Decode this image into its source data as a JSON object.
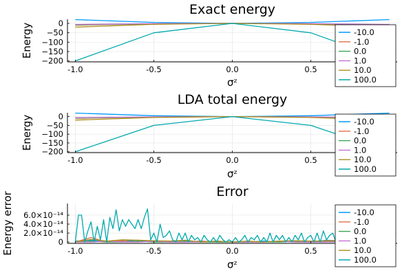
{
  "chart_data": [
    {
      "type": "line",
      "title": "Exact energy",
      "xlabel": "σᶻ",
      "ylabel": "Energy",
      "xlim": [
        -1.05,
        1.05
      ],
      "ylim": [
        -205,
        22
      ],
      "xticks": [
        -1.0,
        -0.5,
        0.0,
        0.5,
        1.0
      ],
      "xtick_labels": [
        "-1.0",
        "-0.5",
        "0.0",
        "0.5",
        "1.0"
      ],
      "yticks": [
        0,
        -50,
        -100,
        -150,
        -200
      ],
      "ytick_labels": [
        "0",
        "−50",
        "−100",
        "−150",
        "−200"
      ],
      "grid": true,
      "legend_position": "right",
      "series": [
        {
          "name": "-10.0",
          "color": "#009AFA",
          "x": [
            -1.0,
            -0.5,
            0.0,
            0.5,
            1.0
          ],
          "y": [
            20.0,
            5.0,
            0.0,
            5.0,
            20.0
          ]
        },
        {
          "name": "-1.0",
          "color": "#E36F47",
          "x": [
            -1.0,
            -0.5,
            0.0,
            0.5,
            1.0
          ],
          "y": [
            -10.0,
            -2.5,
            0.0,
            -2.5,
            -10.0
          ]
        },
        {
          "name": "0.0",
          "color": "#3EA44E",
          "x": [
            -1.0,
            -0.5,
            0.0,
            0.5,
            1.0
          ],
          "y": [
            -8.0,
            -2.0,
            0.0,
            -2.0,
            -8.0
          ]
        },
        {
          "name": "1.0",
          "color": "#C371D2",
          "x": [
            -1.0,
            -0.5,
            0.0,
            0.5,
            1.0
          ],
          "y": [
            -6.0,
            -1.5,
            0.0,
            -1.5,
            -6.0
          ]
        },
        {
          "name": "10.0",
          "color": "#AC8E18",
          "x": [
            -1.0,
            -0.5,
            0.0,
            0.5,
            1.0
          ],
          "y": [
            -20.0,
            -5.0,
            0.0,
            -5.0,
            -20.0
          ]
        },
        {
          "name": "100.0",
          "color": "#00A9AD",
          "x": [
            -1.0,
            -0.5,
            0.0,
            0.5,
            1.0
          ],
          "y": [
            -200.0,
            -50.0,
            0.0,
            -50.0,
            -200.0
          ]
        }
      ]
    },
    {
      "type": "line",
      "title": "LDA total energy",
      "xlabel": "σᶻ",
      "ylabel": "Energy",
      "xlim": [
        -1.05,
        1.05
      ],
      "ylim": [
        -205,
        22
      ],
      "xticks": [
        -1.0,
        -0.5,
        0.0,
        0.5,
        1.0
      ],
      "xtick_labels": [
        "-1.0",
        "-0.5",
        "0.0",
        "0.5",
        "1.0"
      ],
      "yticks": [
        0,
        -50,
        -100,
        -150,
        -200
      ],
      "ytick_labels": [
        "0",
        "−50",
        "−100",
        "−150",
        "−200"
      ],
      "grid": true,
      "legend_position": "right",
      "series": [
        {
          "name": "-10.0",
          "color": "#009AFA",
          "x": [
            -1.0,
            -0.5,
            0.0,
            0.5,
            1.0
          ],
          "y": [
            20.0,
            5.0,
            0.0,
            5.0,
            20.0
          ]
        },
        {
          "name": "-1.0",
          "color": "#E36F47",
          "x": [
            -1.0,
            -0.5,
            0.0,
            0.5,
            1.0
          ],
          "y": [
            -10.0,
            -2.5,
            0.0,
            -2.5,
            -10.0
          ]
        },
        {
          "name": "0.0",
          "color": "#3EA44E",
          "x": [
            -1.0,
            -0.5,
            0.0,
            0.5,
            1.0
          ],
          "y": [
            -8.0,
            -2.0,
            0.0,
            -2.0,
            -8.0
          ]
        },
        {
          "name": "1.0",
          "color": "#C371D2",
          "x": [
            -1.0,
            -0.5,
            0.0,
            0.5,
            1.0
          ],
          "y": [
            -6.0,
            -1.5,
            0.0,
            -1.5,
            -6.0
          ]
        },
        {
          "name": "10.0",
          "color": "#AC8E18",
          "x": [
            -1.0,
            -0.5,
            0.0,
            0.5,
            1.0
          ],
          "y": [
            -20.0,
            -5.0,
            0.0,
            -5.0,
            -20.0
          ]
        },
        {
          "name": "100.0",
          "color": "#00A9AD",
          "x": [
            -1.0,
            -0.5,
            0.0,
            0.5,
            1.0
          ],
          "y": [
            -200.0,
            -50.0,
            0.0,
            -50.0,
            -200.0
          ]
        }
      ]
    },
    {
      "type": "line",
      "title": "Error",
      "xlabel": "σᶻ",
      "ylabel": "Energy error",
      "xlim": [
        -1.05,
        1.05
      ],
      "ylim": [
        -3e-15,
        8.6e-14
      ],
      "xticks": [
        -1.0,
        -0.5,
        0.0,
        0.5,
        1.0
      ],
      "xtick_labels": [
        "-1.0",
        "-0.5",
        "0.0",
        "0.5",
        "1.0"
      ],
      "yticks": [
        0,
        2e-14,
        4e-14,
        6e-14
      ],
      "ytick_labels": [
        "0",
        "2.0×10⁻¹⁴",
        "4.0×10⁻¹⁴",
        "6.0×10⁻¹⁴"
      ],
      "grid": true,
      "legend_position": "right",
      "series": [
        {
          "name": "-10.0",
          "color": "#009AFA",
          "x": [
            -1.0,
            -0.9,
            -0.8,
            -0.7,
            -0.6,
            -0.5,
            -0.4,
            -0.3,
            -0.2,
            -0.1,
            0.0,
            0.1,
            0.2,
            0.3,
            0.4,
            0.5,
            0.6,
            0.7,
            0.8,
            0.9,
            1.0
          ],
          "y": [
            2e-15,
            4e-15,
            0,
            2e-15,
            4e-15,
            0,
            2e-15,
            0,
            2e-15,
            0,
            0,
            0,
            2e-15,
            0,
            2e-15,
            0,
            4e-15,
            2e-15,
            0,
            2e-15,
            0
          ]
        },
        {
          "name": "-1.0",
          "color": "#E36F47",
          "x": [
            -1.0,
            -0.9,
            -0.8,
            -0.7,
            -0.6,
            -0.5,
            -0.4,
            -0.3,
            -0.2,
            -0.1,
            0.0,
            0.1,
            0.2,
            0.3,
            0.4,
            0.5,
            0.6,
            0.7,
            0.8,
            0.9,
            1.0
          ],
          "y": [
            0,
            1e-14,
            0,
            3e-15,
            0,
            3e-15,
            0,
            0,
            2e-15,
            0,
            0,
            0,
            0,
            2e-15,
            0,
            0,
            2e-15,
            0,
            2e-15,
            0,
            0
          ]
        },
        {
          "name": "0.0",
          "color": "#3EA44E",
          "x": [
            -1.0,
            -0.9,
            -0.8,
            -0.7,
            -0.6,
            -0.5,
            -0.4,
            -0.3,
            -0.2,
            -0.1,
            0.0,
            0.1,
            0.2,
            0.3,
            0.4,
            0.5,
            0.6,
            0.7,
            0.8,
            0.9,
            1.0
          ],
          "y": [
            0,
            2e-15,
            0,
            0,
            2e-15,
            0,
            0,
            2e-15,
            0,
            0,
            0,
            0,
            0,
            0,
            2e-15,
            0,
            0,
            2e-15,
            0,
            0,
            0
          ]
        },
        {
          "name": "1.0",
          "color": "#C371D2",
          "x": [
            -1.0,
            -0.9,
            -0.8,
            -0.7,
            -0.6,
            -0.5,
            -0.4,
            -0.3,
            -0.2,
            -0.1,
            0.0,
            0.1,
            0.2,
            0.3,
            0.4,
            0.5,
            0.6,
            0.7,
            0.8,
            0.9,
            1.0
          ],
          "y": [
            0,
            0,
            2e-15,
            0,
            0,
            2e-15,
            0,
            0,
            0,
            2e-15,
            0,
            0,
            0,
            2e-15,
            0,
            0,
            0,
            0,
            2e-15,
            0,
            0
          ]
        },
        {
          "name": "10.0",
          "color": "#AC8E18",
          "x": [
            -1.0,
            -0.9,
            -0.8,
            -0.7,
            -0.6,
            -0.5,
            -0.4,
            -0.3,
            -0.2,
            -0.1,
            0.0,
            0.1,
            0.2,
            0.3,
            0.4,
            0.5,
            0.6,
            0.7,
            0.8,
            0.9,
            1.0
          ],
          "y": [
            0,
            6e-15,
            2e-15,
            5e-15,
            4e-15,
            3e-15,
            2e-15,
            4e-15,
            0,
            2e-15,
            0,
            2e-15,
            0,
            2e-15,
            3e-15,
            2e-15,
            3e-15,
            4e-15,
            2e-15,
            3e-15,
            0
          ]
        },
        {
          "name": "100.0",
          "color": "#00A9AD",
          "x": [
            -1.0,
            -0.98,
            -0.96,
            -0.94,
            -0.92,
            -0.9,
            -0.88,
            -0.86,
            -0.84,
            -0.82,
            -0.8,
            -0.78,
            -0.76,
            -0.74,
            -0.72,
            -0.7,
            -0.68,
            -0.66,
            -0.64,
            -0.62,
            -0.6,
            -0.58,
            -0.56,
            -0.54,
            -0.52,
            -0.5,
            -0.48,
            -0.46,
            -0.44,
            -0.42,
            -0.4,
            -0.38,
            -0.36,
            -0.34,
            -0.32,
            -0.3,
            -0.28,
            -0.26,
            -0.24,
            -0.22,
            -0.2,
            -0.18,
            -0.16,
            -0.14,
            -0.12,
            -0.1,
            -0.08,
            -0.06,
            -0.04,
            -0.02,
            0.0,
            0.02,
            0.04,
            0.06,
            0.08,
            0.1,
            0.12,
            0.14,
            0.16,
            0.18,
            0.2,
            0.22,
            0.24,
            0.26,
            0.28,
            0.3,
            0.32,
            0.34,
            0.36,
            0.38,
            0.4,
            0.42,
            0.44,
            0.46,
            0.48,
            0.5,
            0.52,
            0.54,
            0.56,
            0.58,
            0.6,
            0.62,
            0.64,
            0.66,
            0.68,
            0.7,
            0.72,
            0.74,
            0.76,
            0.78,
            0.8,
            0.82,
            0.84,
            0.86,
            0.88,
            0.9,
            0.92,
            0.94,
            0.96,
            0.98,
            1.0
          ],
          "y": [
            0,
            6e-14,
            6e-14,
            0,
            2.5e-14,
            4.5e-14,
            0,
            3.5e-14,
            5e-15,
            5e-14,
            0,
            5.5e-14,
            3e-14,
            7.2e-14,
            2.5e-14,
            5e-14,
            3.5e-14,
            5e-14,
            4e-14,
            3e-14,
            5e-14,
            3e-14,
            5.5e-14,
            7.4e-14,
            5e-15,
            2e-14,
            0,
            4e-14,
            1e-14,
            1.5e-14,
            2.5e-14,
            5e-15,
            0,
            2e-14,
            5e-15,
            2e-14,
            0,
            1.5e-14,
            5e-15,
            1e-14,
            0,
            1.5e-14,
            5e-15,
            0,
            1e-14,
            0,
            1.5e-14,
            5e-15,
            0,
            5e-15,
            0,
            1e-14,
            0,
            5e-15,
            1.5e-14,
            0,
            1e-14,
            5e-15,
            1.5e-14,
            0,
            1e-14,
            0,
            2e-14,
            0,
            1.5e-14,
            5e-15,
            1.5e-14,
            0,
            1e-14,
            0,
            1.5e-14,
            5e-15,
            2e-14,
            0,
            1e-14,
            1.5e-14,
            0,
            2e-14,
            0,
            2.5e-14,
            5e-15,
            1.5e-14,
            2e-14,
            0,
            2.5e-14,
            1.5e-14,
            0,
            2e-14,
            1e-14,
            0,
            2.5e-14,
            0,
            3e-14,
            1.5e-14,
            0,
            2e-14,
            1e-14,
            0,
            3.5e-14,
            0,
            0
          ]
        }
      ]
    }
  ]
}
